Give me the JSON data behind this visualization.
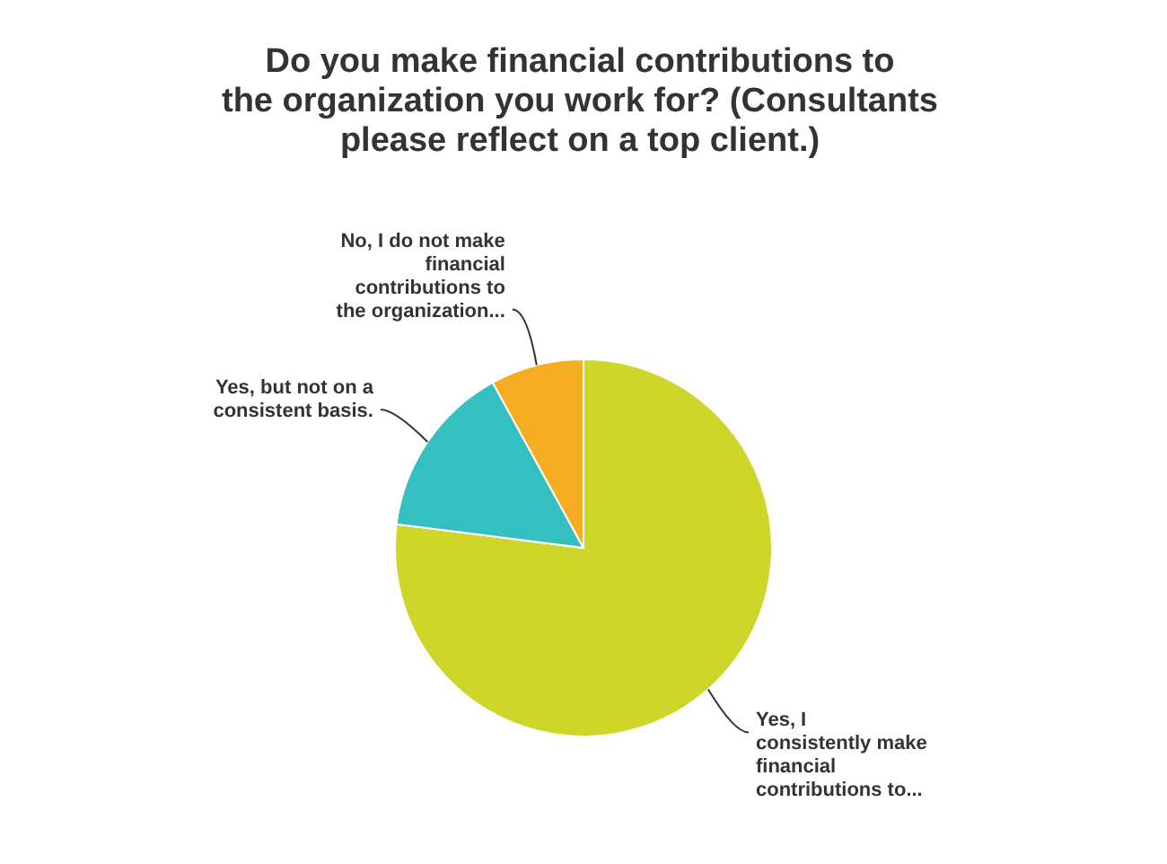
{
  "chart_data": {
    "type": "pie",
    "title": "Do you make financial contributions to\nthe organization you work for? (Consultants\nplease reflect on a top client.)",
    "categories": [
      "Yes, I\nconsistently make\nfinancial\ncontributions to...",
      "Yes, but not on a\nconsistent basis.",
      "No, I do not make\nfinancial\ncontributions to\nthe organization..."
    ],
    "values": [
      77,
      15,
      8
    ],
    "colors": [
      "#cfd62a",
      "#35bfc0",
      "#f5ad22"
    ]
  }
}
